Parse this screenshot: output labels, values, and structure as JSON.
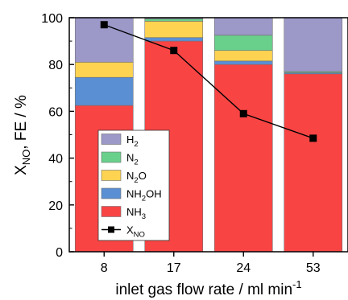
{
  "chart_data": {
    "type": "bar",
    "subtype": "stacked-bar-with-line",
    "categories": [
      "8",
      "17",
      "24",
      "53"
    ],
    "xlabel": "inlet gas flow rate / ml min",
    "xlabel_sup": "-1",
    "ylabel": "X",
    "ylabel_sub": "NO",
    "ylabel_rest": ", FE / %",
    "ylim": [
      0,
      100
    ],
    "yticks": [
      "0",
      "20",
      "40",
      "60",
      "80",
      "100"
    ],
    "grid": false,
    "legend_placement": "lower-left inside plot",
    "series": [
      {
        "name": "NH3",
        "label_main": "NH",
        "label_sub": "3",
        "label_tail": "",
        "color": "#f94444",
        "values": [
          62.5,
          90,
          80,
          76
        ]
      },
      {
        "name": "NH2OH",
        "label_main": "NH",
        "label_sub": "2",
        "label_tail": "OH",
        "color": "#5b8fd4",
        "values": [
          12,
          1.5,
          1.5,
          0.5
        ]
      },
      {
        "name": "N2O",
        "label_main": "N",
        "label_sub": "2",
        "label_tail": "O",
        "color": "#fdd351",
        "values": [
          6.5,
          7,
          4.5,
          0
        ]
      },
      {
        "name": "N2",
        "label_main": "N",
        "label_sub": "2",
        "label_tail": "",
        "color": "#69d08c",
        "values": [
          0,
          1,
          6.5,
          0.5
        ]
      },
      {
        "name": "H2",
        "label_main": "H",
        "label_sub": "2",
        "label_tail": "",
        "color": "#9c98c8",
        "values": [
          19,
          0.5,
          7.5,
          23
        ]
      }
    ],
    "line_series": {
      "name": "XNO",
      "label_main": "X",
      "label_sub": "NO",
      "color": "#000000",
      "values": [
        97,
        86,
        59,
        48.5
      ]
    }
  }
}
